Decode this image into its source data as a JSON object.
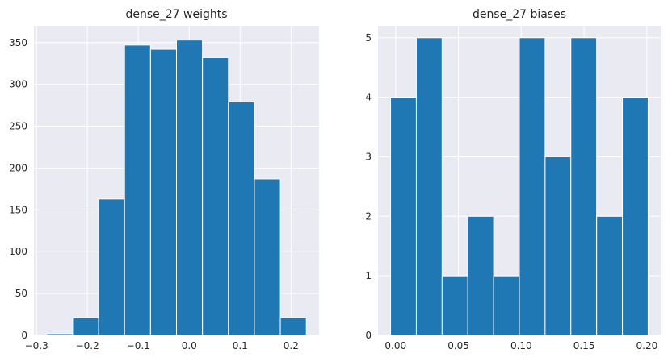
{
  "chart_data": [
    {
      "type": "bar",
      "title": "dense_27 weights",
      "xlabel": "",
      "ylabel": "",
      "bin_edges": [
        -0.28,
        -0.229,
        -0.178,
        -0.127,
        -0.076,
        -0.025,
        0.026,
        0.077,
        0.128,
        0.179,
        0.23
      ],
      "values": [
        2,
        21,
        163,
        347,
        342,
        353,
        332,
        279,
        187,
        21
      ],
      "xlim": [
        -0.305,
        0.255
      ],
      "ylim": [
        0,
        370
      ],
      "xticks": [
        -0.3,
        -0.2,
        -0.1,
        0.0,
        0.1,
        0.2
      ],
      "xtick_labels": [
        "−0.3",
        "−0.2",
        "−0.1",
        "0.0",
        "0.1",
        "0.2"
      ],
      "yticks": [
        0,
        50,
        100,
        150,
        200,
        250,
        300,
        350
      ],
      "ytick_labels": [
        "0",
        "50",
        "100",
        "150",
        "200",
        "250",
        "300",
        "350"
      ],
      "grid": true
    },
    {
      "type": "bar",
      "title": "dense_27 biases",
      "xlabel": "",
      "ylabel": "",
      "bin_edges": [
        -0.004,
        0.0165,
        0.037,
        0.0575,
        0.078,
        0.0985,
        0.119,
        0.1395,
        0.16,
        0.1805,
        0.201
      ],
      "values": [
        4,
        5,
        1,
        2,
        1,
        5,
        3,
        5,
        2,
        4
      ],
      "xlim": [
        -0.014,
        0.211
      ],
      "ylim": [
        0,
        5.2
      ],
      "xticks": [
        0.0,
        0.05,
        0.1,
        0.15,
        0.2
      ],
      "xtick_labels": [
        "0.00",
        "0.05",
        "0.10",
        "0.15",
        "0.20"
      ],
      "yticks": [
        0,
        1,
        2,
        3,
        4,
        5
      ],
      "ytick_labels": [
        "0",
        "1",
        "2",
        "3",
        "4",
        "5"
      ],
      "grid": true
    }
  ],
  "colors": {
    "bar": "#1f77b4",
    "plot_background": "#eaeaf2",
    "grid": "#ffffff"
  }
}
